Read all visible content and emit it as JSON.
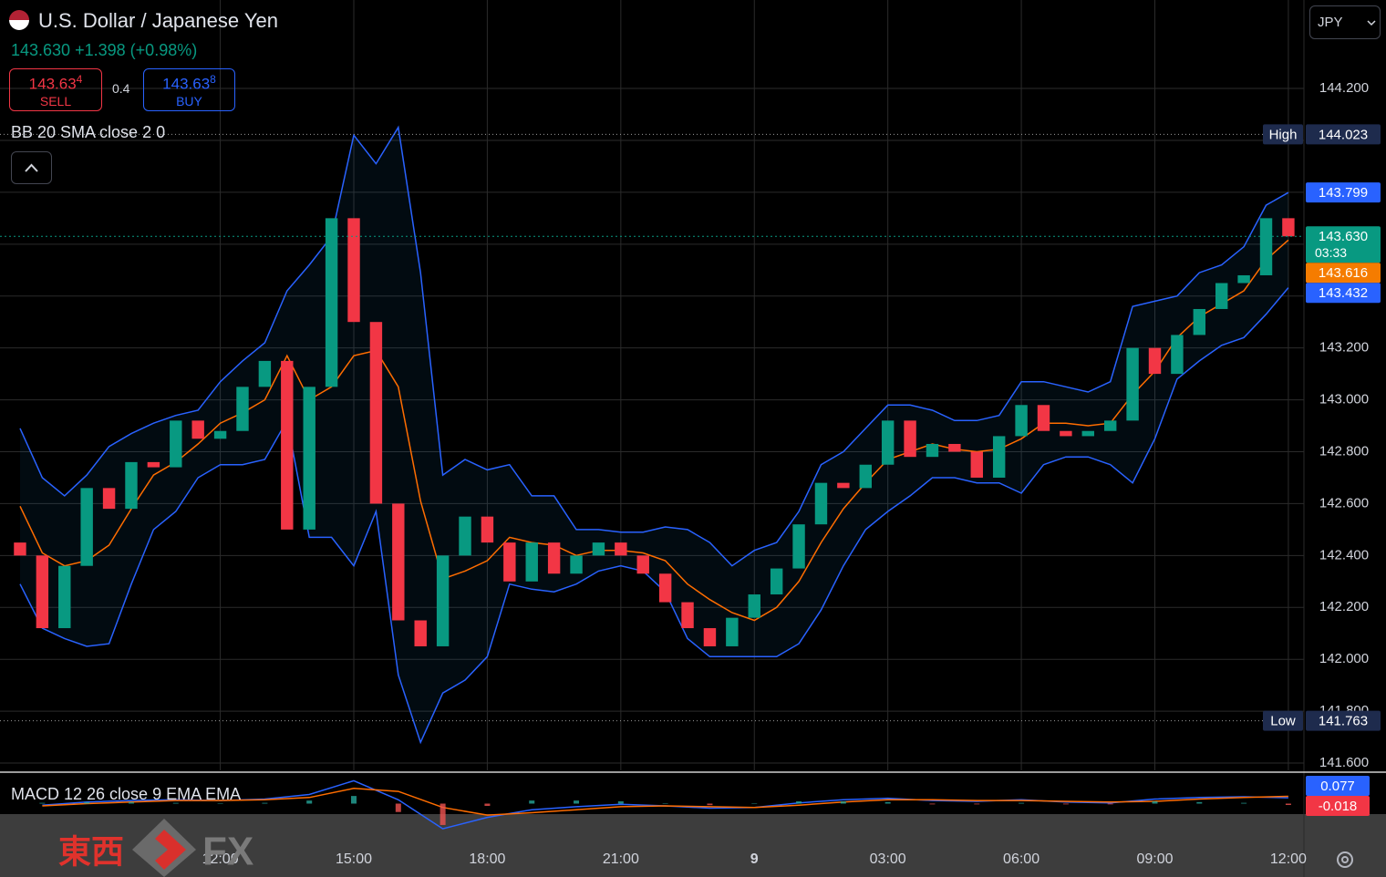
{
  "header": {
    "symbol": "U.S. Dollar / Japanese Yen",
    "price": "143.630",
    "change": "+1.398",
    "change_pct": "(+0.98%)"
  },
  "trade": {
    "sell_price": "143.63",
    "sell_pip": "4",
    "sell_label": "SELL",
    "spread": 0.4,
    "buy_price": "143.63",
    "buy_pip": "8",
    "buy_label": "BUY"
  },
  "currency": "JPY",
  "watermark": {
    "cjk": "東西",
    "fx": "FX"
  },
  "chart_data": [
    {
      "type": "candlestick",
      "title": "BB 20 SMA close 2 0",
      "x": [
        7.5,
        8,
        8.5,
        9,
        9.5,
        10,
        10.5,
        11,
        11.5,
        12,
        12.5,
        13,
        13.5,
        14,
        14.5,
        15,
        15.5,
        16,
        16.5,
        17,
        17.5,
        18,
        18.5,
        19,
        19.5,
        20,
        20.5,
        21,
        21.5,
        22,
        22.5,
        23,
        23.5,
        24,
        24.5,
        25,
        25.5,
        26,
        26.5,
        27,
        27.5,
        28,
        28.5,
        29,
        29.5,
        30,
        30.5,
        31,
        31.5,
        32,
        32.5,
        33,
        33.5,
        34,
        34.5,
        35,
        35.5,
        36
      ],
      "open": [
        142.45,
        142.4,
        142.12,
        142.36,
        142.66,
        142.58,
        142.76,
        142.74,
        142.92,
        142.85,
        142.88,
        143.05,
        143.15,
        142.5,
        143.05,
        143.7,
        143.3,
        142.6,
        142.15,
        142.05,
        142.4,
        142.55,
        142.45,
        142.3,
        142.45,
        142.33,
        142.4,
        142.45,
        142.4,
        142.33,
        142.22,
        142.12,
        142.05,
        142.16,
        142.25,
        142.35,
        142.52,
        142.68,
        142.66,
        142.75,
        142.92,
        142.78,
        142.83,
        142.8,
        142.7,
        142.86,
        142.98,
        142.88,
        142.86,
        142.88,
        142.92,
        143.2,
        143.1,
        143.25,
        143.35,
        143.45,
        143.48,
        143.7
      ],
      "high": {
        "label": "High",
        "value": 144.023
      },
      "low": {
        "label": "Low",
        "value": 141.763
      },
      "close": [
        142.4,
        142.12,
        142.36,
        142.66,
        142.58,
        142.76,
        142.74,
        142.92,
        142.85,
        142.88,
        143.05,
        143.15,
        142.5,
        143.05,
        143.7,
        143.3,
        142.6,
        142.15,
        142.05,
        142.4,
        142.55,
        142.45,
        142.3,
        142.45,
        142.33,
        142.4,
        142.45,
        142.4,
        142.33,
        142.22,
        142.12,
        142.05,
        142.16,
        142.25,
        142.35,
        142.52,
        142.68,
        142.66,
        142.75,
        142.92,
        142.78,
        142.83,
        142.8,
        142.7,
        142.86,
        142.98,
        142.88,
        142.86,
        142.88,
        142.92,
        143.2,
        143.1,
        143.25,
        143.35,
        143.45,
        143.48,
        143.7,
        143.63
      ],
      "colors": {
        "up": "#089981",
        "down": "#f23645"
      },
      "series": [
        {
          "color": "#2962ff",
          "tag_color": "#2962ff",
          "values": [
            142.89,
            142.7,
            142.63,
            142.71,
            142.82,
            142.87,
            142.91,
            142.94,
            142.96,
            143.07,
            143.15,
            143.22,
            143.42,
            143.52,
            143.63,
            144.02,
            143.91,
            144.05,
            143.49,
            142.71,
            142.77,
            142.73,
            142.75,
            142.63,
            142.63,
            142.5,
            142.5,
            142.49,
            142.49,
            142.51,
            142.5,
            142.45,
            142.36,
            142.42,
            142.45,
            142.57,
            142.75,
            142.8,
            142.89,
            142.98,
            142.98,
            142.96,
            142.92,
            142.92,
            142.94,
            143.07,
            143.07,
            143.05,
            143.03,
            143.07,
            143.36,
            143.38,
            143.4,
            143.49,
            143.52,
            143.59,
            143.75,
            143.799
          ]
        },
        {
          "color": "#ff6d00",
          "tag_color": "#f57c00",
          "values": [
            142.59,
            142.41,
            142.36,
            142.38,
            142.44,
            142.58,
            142.71,
            142.76,
            142.83,
            142.91,
            142.95,
            143.0,
            143.17,
            143.0,
            143.05,
            143.17,
            143.19,
            143.05,
            142.61,
            142.31,
            142.34,
            142.38,
            142.47,
            142.45,
            142.44,
            142.4,
            142.42,
            142.42,
            142.41,
            142.38,
            142.29,
            142.23,
            142.18,
            142.15,
            142.2,
            142.3,
            142.45,
            142.58,
            142.68,
            142.77,
            142.8,
            142.83,
            142.81,
            142.8,
            142.81,
            142.85,
            142.91,
            142.91,
            142.9,
            142.91,
            143.02,
            143.11,
            143.24,
            143.32,
            143.37,
            143.42,
            143.54,
            143.616
          ]
        },
        {
          "color": "#2962ff",
          "tag_color": "#2962ff",
          "values": [
            142.29,
            142.12,
            142.08,
            142.05,
            142.06,
            142.29,
            142.5,
            142.57,
            142.7,
            142.75,
            142.75,
            142.77,
            142.92,
            142.47,
            142.47,
            142.36,
            142.57,
            141.94,
            141.68,
            141.87,
            141.92,
            142.01,
            142.29,
            142.27,
            142.26,
            142.29,
            142.34,
            142.36,
            142.34,
            142.26,
            142.08,
            142.01,
            142.01,
            142.01,
            142.01,
            142.06,
            142.19,
            142.36,
            142.5,
            142.57,
            142.63,
            142.7,
            142.7,
            142.68,
            142.68,
            142.64,
            142.75,
            142.78,
            142.78,
            142.75,
            142.68,
            142.85,
            143.08,
            143.15,
            143.21,
            143.24,
            143.33,
            143.432
          ]
        }
      ],
      "band_fill": "#2196f3",
      "last_price": {
        "value": 143.63,
        "label": "143.630"
      },
      "countdown": "03:33",
      "xlim": [
        7.05,
        36.35
      ],
      "xticks": [
        {
          "value": 12,
          "label": "12:00"
        },
        {
          "value": 15,
          "label": "15:00"
        },
        {
          "value": 18,
          "label": "18:00"
        },
        {
          "value": 21,
          "label": "21:00"
        },
        {
          "value": 24,
          "label": "9"
        },
        {
          "value": 27,
          "label": "03:00"
        },
        {
          "value": 30,
          "label": "06:00"
        },
        {
          "value": 33,
          "label": "09:00"
        },
        {
          "value": 36,
          "label": "12:00"
        }
      ],
      "ylim": [
        141.572,
        144.541
      ],
      "yticks": [
        {
          "value": 141.6,
          "label": "141.600"
        },
        {
          "value": 141.8,
          "label": "141.800"
        },
        {
          "value": 142.0,
          "label": "142.000"
        },
        {
          "value": 142.2,
          "label": "142.200"
        },
        {
          "value": 142.4,
          "label": "142.400"
        },
        {
          "value": 142.6,
          "label": "142.600"
        },
        {
          "value": 142.8,
          "label": "142.800"
        },
        {
          "value": 143.0,
          "label": "143.000"
        },
        {
          "value": 143.2,
          "label": "143.200"
        },
        {
          "value": 143.4,
          "label": "143.400"
        },
        {
          "value": 143.6,
          "label": "143.600"
        },
        {
          "value": 143.8,
          "label": "143.800"
        },
        {
          "value": 144.0,
          "label": "144.000"
        },
        {
          "value": 144.2,
          "label": "144.200"
        }
      ],
      "grid": true
    },
    {
      "type": "macd",
      "title": "MACD 12 26 close 9 EMA EMA",
      "x": [
        8,
        9,
        10,
        11,
        12,
        13,
        14,
        15,
        16,
        17,
        18,
        19,
        20,
        21,
        22,
        23,
        24,
        25,
        26,
        27,
        28,
        29,
        30,
        31,
        32,
        33,
        34,
        35,
        36
      ],
      "ylim": [
        -0.4,
        0.4
      ],
      "series": [
        {
          "type": "line",
          "color": "#2962ff",
          "tag_color": "#2962ff",
          "values": [
            -0.02,
            0.02,
            0.04,
            0.05,
            0.04,
            0.06,
            0.12,
            0.3,
            0.05,
            -0.33,
            -0.18,
            -0.08,
            -0.04,
            -0.01,
            -0.03,
            -0.06,
            -0.05,
            0.01,
            0.05,
            0.07,
            0.04,
            0.03,
            0.05,
            0.02,
            0.01,
            0.06,
            0.08,
            0.09,
            0.077
          ]
        },
        {
          "type": "line",
          "color": "#ff6d00",
          "values": [
            -0.03,
            0.0,
            0.02,
            0.04,
            0.04,
            0.05,
            0.08,
            0.2,
            0.16,
            -0.05,
            -0.15,
            -0.12,
            -0.08,
            -0.04,
            -0.03,
            -0.04,
            -0.05,
            -0.02,
            0.02,
            0.05,
            0.05,
            0.04,
            0.04,
            0.03,
            0.02,
            0.03,
            0.06,
            0.08,
            0.095
          ]
        },
        {
          "type": "bar",
          "colors": {
            "up": "#26a69a",
            "down": "#ef5350"
          },
          "tag_color": "#f23645",
          "values": [
            0.01,
            0.02,
            0.02,
            0.01,
            0,
            0.01,
            0.04,
            0.1,
            -0.11,
            -0.28,
            -0.03,
            0.04,
            0.04,
            0.03,
            0,
            -0.02,
            0,
            0.03,
            0.03,
            0.02,
            -0.01,
            -0.01,
            0.01,
            -0.01,
            -0.01,
            0.03,
            0.02,
            0.01,
            -0.018
          ]
        }
      ]
    }
  ]
}
